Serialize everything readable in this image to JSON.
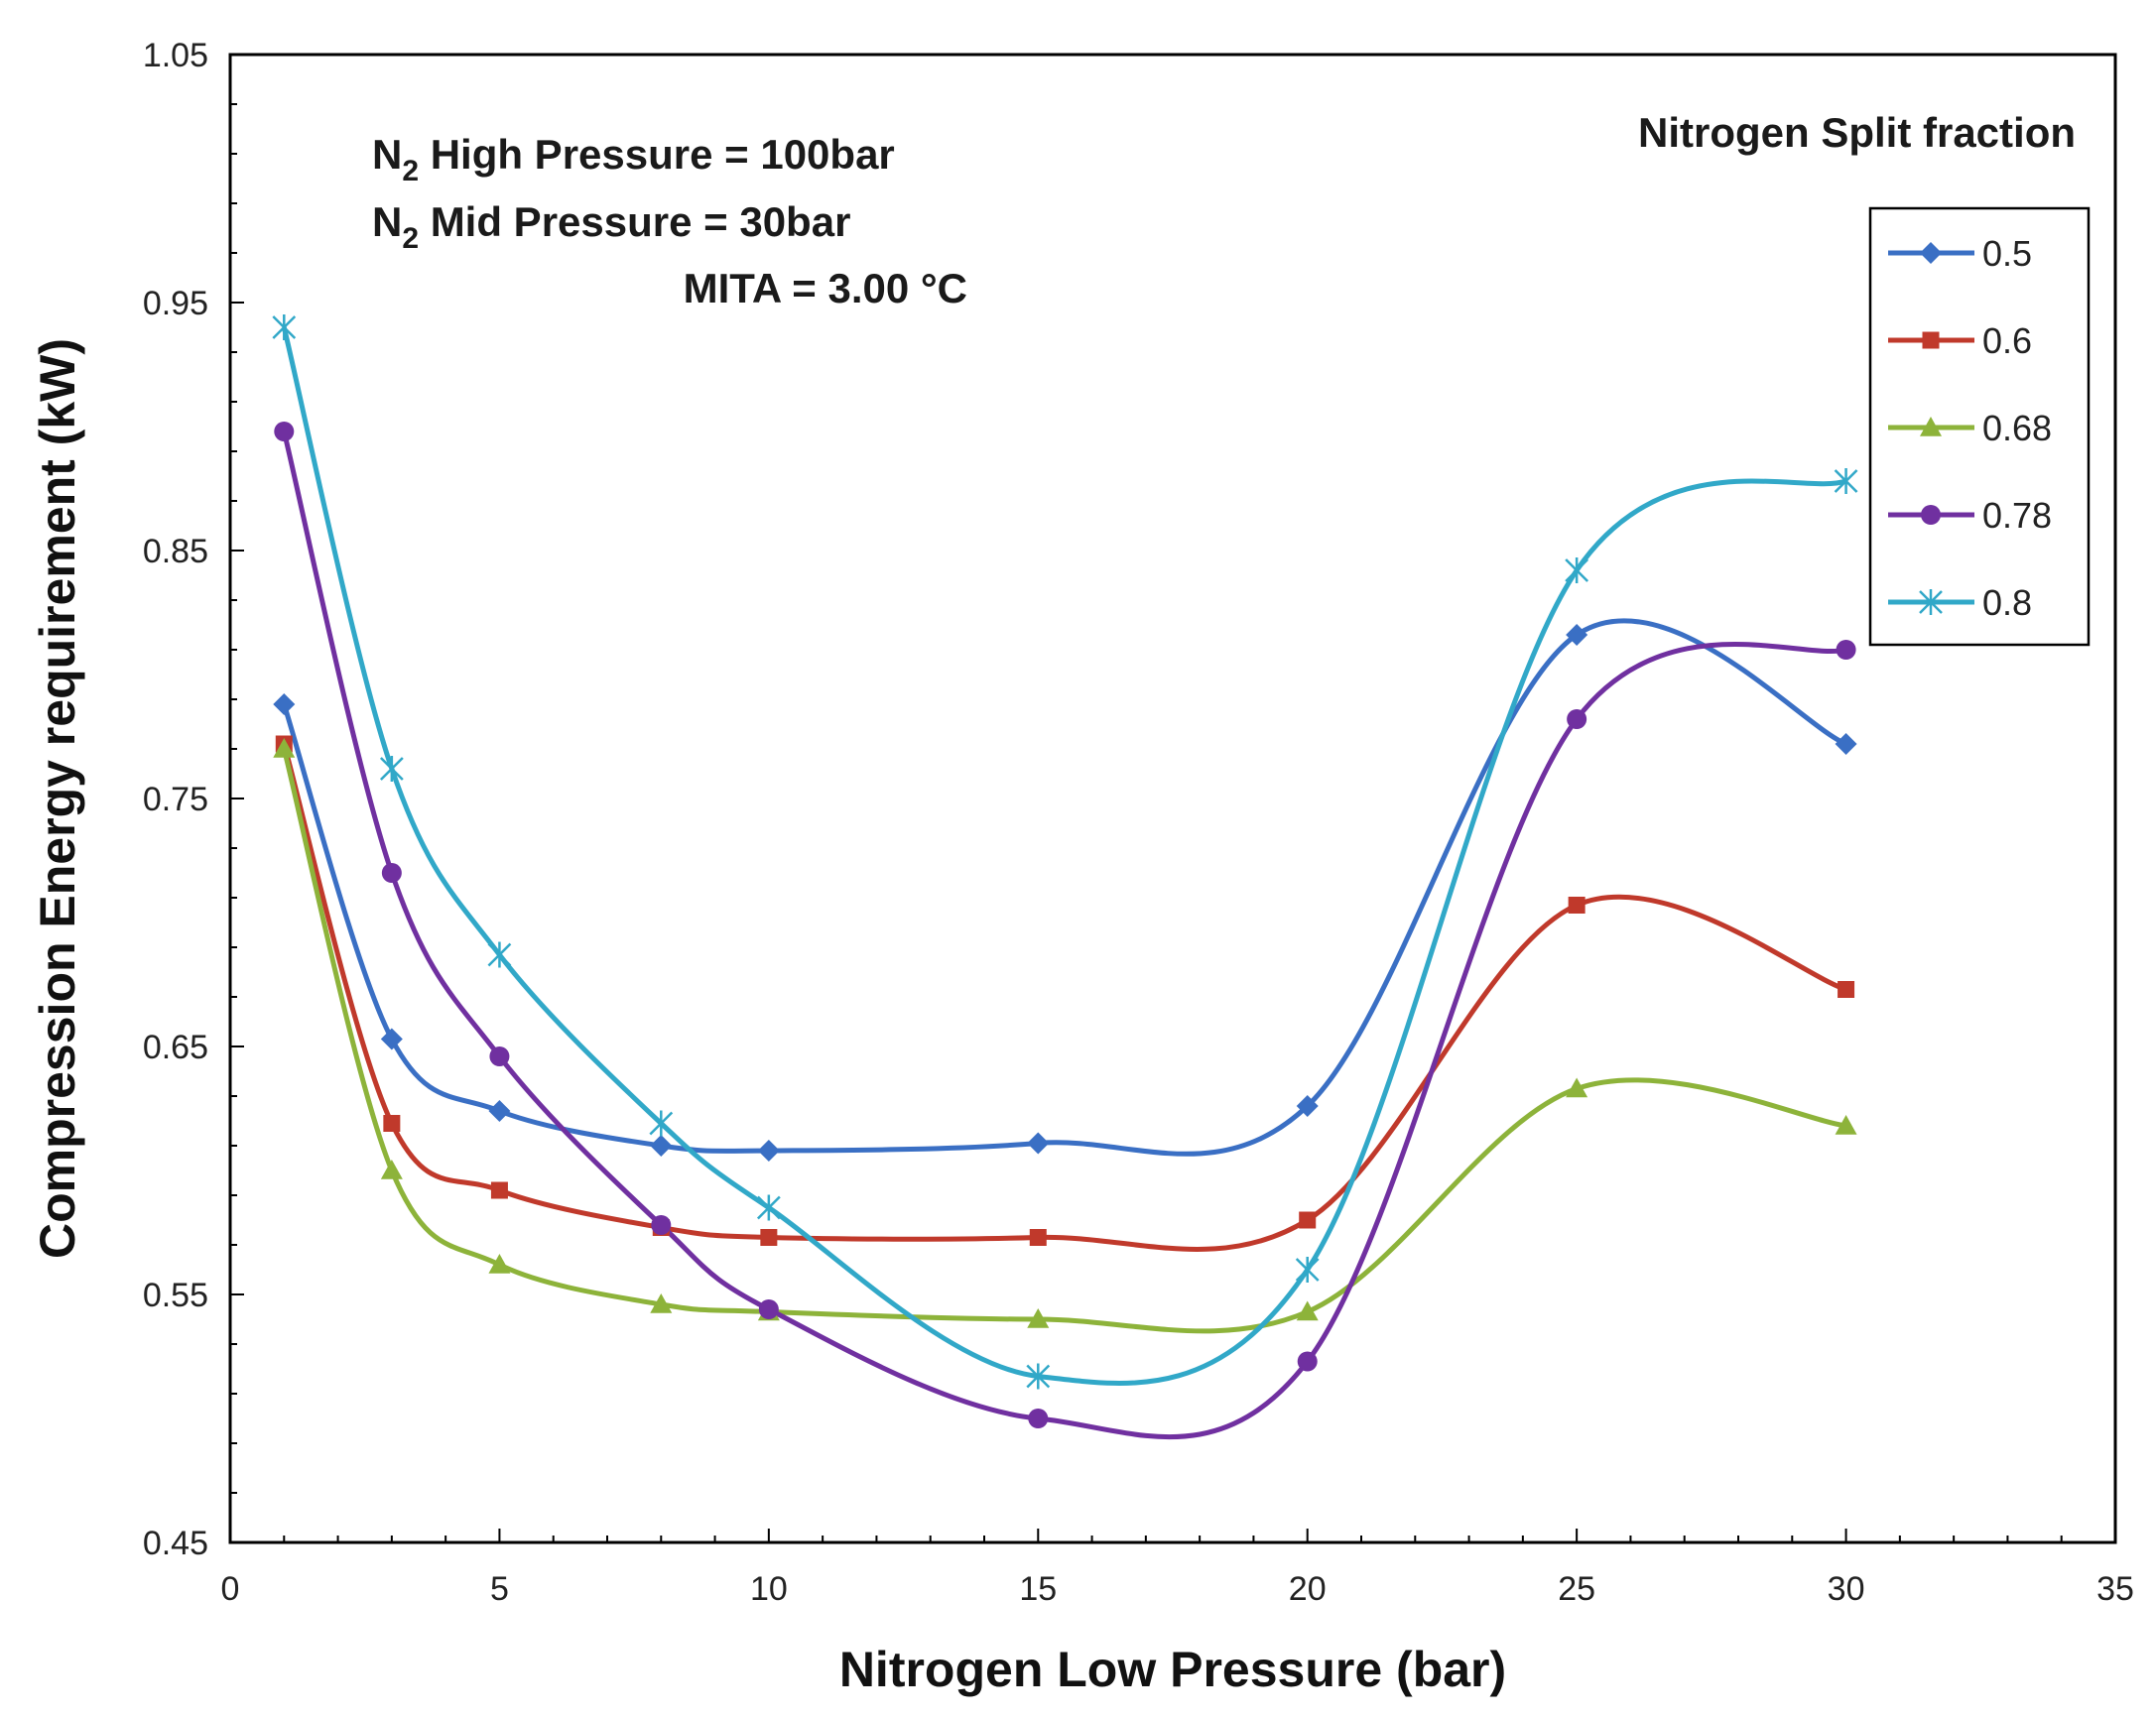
{
  "chart_data": {
    "type": "line",
    "xlabel": "Nitrogen Low Pressure (bar)",
    "ylabel": "Compression Energy requirement (kW)",
    "xlim": [
      0,
      35
    ],
    "ylim": [
      0.45,
      1.05
    ],
    "xticks": [
      "0",
      "5",
      "10",
      "15",
      "20",
      "25",
      "30",
      "35"
    ],
    "yticks": [
      "0.45",
      "0.55",
      "0.65",
      "0.75",
      "0.85",
      "0.95",
      "1.05"
    ],
    "grid": false,
    "legend_title": "Nitrogen Split fraction",
    "legend_position": "top-right",
    "annotations": {
      "n2": "N",
      "sub2": "2",
      "high_rest": " High Pressure = 100bar",
      "mid_rest": " Mid Pressure   = 30bar",
      "mita": "MITA = 3.00 °C"
    },
    "x": [
      1,
      3,
      5,
      8,
      10,
      15,
      20,
      25,
      30
    ],
    "series": [
      {
        "name": "0.5",
        "color": "#3a6fc4",
        "marker": "diamond",
        "values": [
          0.788,
          0.653,
          0.624,
          0.61,
          0.608,
          0.611,
          0.626,
          0.816,
          0.772
        ]
      },
      {
        "name": "0.6",
        "color": "#c0392b",
        "marker": "square",
        "values": [
          0.772,
          0.619,
          0.592,
          0.577,
          0.573,
          0.573,
          0.58,
          0.707,
          0.673
        ]
      },
      {
        "name": "0.68",
        "color": "#8db33a",
        "marker": "triangle",
        "values": [
          0.77,
          0.6,
          0.562,
          0.546,
          0.543,
          0.54,
          0.543,
          0.633,
          0.618
        ]
      },
      {
        "name": "0.78",
        "color": "#7030a0",
        "marker": "circle",
        "values": [
          0.898,
          0.72,
          0.646,
          0.578,
          0.544,
          0.5,
          0.523,
          0.782,
          0.81
        ]
      },
      {
        "name": "0.8",
        "color": "#31a8c8",
        "marker": "star",
        "values": [
          0.94,
          0.762,
          0.687,
          0.619,
          0.585,
          0.517,
          0.56,
          0.842,
          0.878
        ]
      }
    ]
  }
}
